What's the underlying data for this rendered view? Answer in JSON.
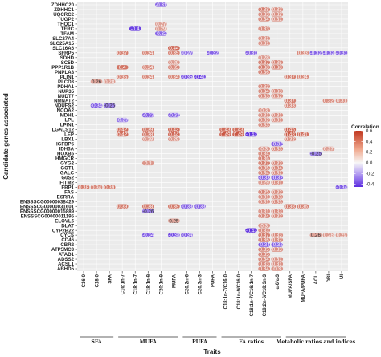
{
  "chart_data": {
    "type": "heatmap",
    "xlabel": "Traits",
    "ylabel": "Candidate genes associated",
    "legend_title": "Correlation",
    "color_range": [
      -0.45,
      0.6
    ],
    "legend_ticks": [
      0.6,
      0.4,
      0.2,
      0.0,
      -0.2,
      -0.4
    ],
    "legend_tick_labels": [
      "0.6",
      "0.4",
      "0.2",
      "0.0",
      "-0.2",
      "-0.4"
    ],
    "colors": {
      "negative": "#5b2be0",
      "zero": "#f7f7f7",
      "positive": "#c0361e"
    },
    "traits": [
      "C16:0",
      "C18:0",
      "SFA",
      "C16:1n-7",
      "C18:1n-7",
      "C18:1n-9",
      "C20:1n-9",
      "MUFA",
      "C20:2n-6",
      "C20:3n-3",
      "PUFA",
      "C18:1n-7/C16:0",
      "C18:1n-9/C16:0",
      "C18:1n-7/C16:1n-7",
      "C18:2n-6/C18:3n-3",
      "ω6/ω3",
      "MUFA/SFA",
      "MUFA/PUFA",
      "ACL",
      "DBI",
      "UI"
    ],
    "trait_groups": [
      {
        "name": "SFA",
        "start": 0,
        "end": 2
      },
      {
        "name": "MUFA",
        "start": 3,
        "end": 7
      },
      {
        "name": "PUFA",
        "start": 8,
        "end": 10
      },
      {
        "name": "FA ratios",
        "start": 11,
        "end": 15
      },
      {
        "name": "Metabolic ratios and indices",
        "start": 16,
        "end": 20
      }
    ],
    "genes": [
      "ZDHHC20",
      "ZDHHC1",
      "UQCRC2",
      "UGP2",
      "THOC1",
      "TFRC",
      "TFAM",
      "SLC27A4",
      "SLC25A15",
      "SLC16A6",
      "SFRP5",
      "SDHD",
      "SC5D",
      "PPP1R1B",
      "PNPLA8",
      "PLIN1",
      "PLCD3",
      "PDHA1",
      "NUP35",
      "NUDT7",
      "NMNAT2",
      "NDUFS2",
      "NCOA2",
      "MDH1",
      "LPL",
      "LPIN1",
      "LGALS12",
      "LEP",
      "LBX1",
      "IGFBP5",
      "IDH3A",
      "HOXB6",
      "HMGCR",
      "GYG2",
      "GOT1",
      "GALC",
      "G0S2",
      "FITM2",
      "FBP1",
      "FAS",
      "ESRRA",
      "ENSSSCG00000038429",
      "ENSSSCG00000031601",
      "ENSSSCG00000015889",
      "ENSSSCG00000011195",
      "ELOVL6",
      "DLAT",
      "CYP2B22",
      "CYCS",
      "CD46",
      "CBR2",
      "ATP5MC3",
      "ATAD1",
      "ADSS2",
      "ACSL1",
      "ABHD5"
    ],
    "cells": [
      [
        "ZDHHC20",
        "C20:1n-9",
        -0.31
      ],
      [
        "ZDHHC1",
        "C18:2n-6/C18:3n-3",
        0.38
      ],
      [
        "ZDHHC1",
        "ω6/ω3",
        0.33
      ],
      [
        "UQCRC2",
        "C18:2n-6/C18:3n-3",
        0.33
      ],
      [
        "UQCRC2",
        "ω6/ω3",
        0.32
      ],
      [
        "UGP2",
        "C18:2n-6/C18:3n-3",
        0.34
      ],
      [
        "UGP2",
        "ω6/ω3",
        0.31
      ],
      [
        "THOC1",
        "C20:1n-9",
        0.27
      ],
      [
        "TFRC",
        "C18:1n-7",
        -0.4
      ],
      [
        "TFRC",
        "C20:1n-9",
        0.29
      ],
      [
        "TFRC",
        "C18:2n-6/C18:3n-3",
        0.33
      ],
      [
        "TFAM",
        "C20:1n-9",
        -0.32
      ],
      [
        "SLC27A4",
        "C18:2n-6/C18:3n-3",
        0.31
      ],
      [
        "SLC25A15",
        "C18:2n-6/C18:3n-3",
        0.31
      ],
      [
        "SLC16A6",
        "MUFA",
        0.44
      ],
      [
        "SFRP5",
        "C16:1n-7",
        0.37
      ],
      [
        "SFRP5",
        "C18:1n-9",
        0.34
      ],
      [
        "SFRP5",
        "MUFA",
        0.35
      ],
      [
        "SFRP5",
        "C20:2n-6",
        -0.27
      ],
      [
        "SFRP5",
        "PUFA",
        -0.32
      ],
      [
        "SFRP5",
        "C18:1n-7/C16:1n-7",
        -0.31
      ],
      [
        "SFRP5",
        "MUFA/PUFA",
        0.33
      ],
      [
        "SFRP5",
        "ACL",
        -0.32
      ],
      [
        "SFRP5",
        "DBI",
        -0.32
      ],
      [
        "SFRP5",
        "UI",
        -0.31
      ],
      [
        "SDHD",
        "C18:2n-6/C18:3n-3",
        0.28
      ],
      [
        "SC5D",
        "MUFA",
        0.29
      ],
      [
        "SC5D",
        "C18:2n-6/C18:3n-3",
        0.37
      ],
      [
        "SC5D",
        "ω6/ω3",
        0.35
      ],
      [
        "PPP1R1B",
        "C16:1n-7",
        0.4
      ],
      [
        "PPP1R1B",
        "C18:1n-9",
        0.34
      ],
      [
        "PPP1R1B",
        "MUFA",
        0.35
      ],
      [
        "PPP1R1B",
        "C18:2n-6/C18:3n-3",
        0.38
      ],
      [
        "PPP1R1B",
        "ω6/ω3",
        0.38
      ],
      [
        "PNPLA8",
        "C18:2n-6/C18:3n-3",
        0.36
      ],
      [
        "PLIN1",
        "C16:1n-7",
        0.35
      ],
      [
        "PLIN1",
        "C18:1n-9",
        0.34
      ],
      [
        "PLIN1",
        "MUFA",
        0.34
      ],
      [
        "PLIN1",
        "C20:2n-6",
        -0.35
      ],
      [
        "PLIN1",
        "C20:3n-3",
        -0.41
      ],
      [
        "PLIN1",
        "MUFA/SFA",
        0.37
      ],
      [
        "PLIN1",
        "MUFA/PUFA",
        0.34
      ],
      [
        "PLCD3",
        "C18:0",
        0.26
      ],
      [
        "PLCD3",
        "SFA",
        0.28
      ],
      [
        "PDHA1",
        "C18:2n-6/C18:3n-3",
        0.33
      ],
      [
        "NUP35",
        "C18:2n-6/C18:3n-3",
        0.34
      ],
      [
        "NUP35",
        "ω6/ω3",
        0.33
      ],
      [
        "NUDT7",
        "C18:2n-6/C18:3n-3",
        0.33
      ],
      [
        "NUDT7",
        "ω6/ω3",
        0.32
      ],
      [
        "NMNAT2",
        "MUFA/SFA",
        0.37
      ],
      [
        "NMNAT2",
        "DBI",
        0.32
      ],
      [
        "NMNAT2",
        "UI",
        0.31
      ],
      [
        "NDUFS2",
        "C18:0",
        -0.34
      ],
      [
        "NDUFS2",
        "SFA",
        -0.26
      ],
      [
        "NDUFS2",
        "MUFA/SFA",
        0.33
      ],
      [
        "NCOA2",
        "C18:2n-6/C18:3n-3",
        0.3
      ],
      [
        "MDH1",
        "C18:1n-9",
        -0.33
      ],
      [
        "MDH1",
        "MUFA",
        -0.32
      ],
      [
        "MDH1",
        "C18:2n-6/C18:3n-3",
        0.31
      ],
      [
        "MDH1",
        "ω6/ω3",
        0.31
      ],
      [
        "LPL",
        "C16:1n-7",
        -0.27
      ],
      [
        "LPL",
        "C18:2n-6/C18:3n-3",
        0.32
      ],
      [
        "LPL",
        "ω6/ω3",
        0.31
      ],
      [
        "LPIN1",
        "C18:2n-6/C18:3n-3",
        0.33
      ],
      [
        "LGALS12",
        "C16:1n-7",
        0.42
      ],
      [
        "LGALS12",
        "C18:1n-9",
        0.39
      ],
      [
        "LGALS12",
        "MUFA",
        0.43
      ],
      [
        "LGALS12",
        "C18:1n-7/C16:0",
        0.43
      ],
      [
        "LGALS12",
        "C18:1n-9/C16:0",
        0.43
      ],
      [
        "LGALS12",
        "MUFA/SFA",
        0.45
      ],
      [
        "LEP",
        "C16:1n-7",
        0.42
      ],
      [
        "LEP",
        "C18:1n-9",
        0.38
      ],
      [
        "LEP",
        "MUFA",
        0.44
      ],
      [
        "LEP",
        "C18:1n-7/C16:0",
        0.49
      ],
      [
        "LEP",
        "C18:1n-9/C16:0",
        0.49
      ],
      [
        "LEP",
        "C18:1n-7/C16:1n-7",
        -0.43
      ],
      [
        "LEP",
        "MUFA/SFA",
        0.48
      ],
      [
        "LEP",
        "MUFA/PUFA",
        0.41
      ],
      [
        "LBX1",
        "C18:1n-9",
        0.28
      ],
      [
        "LBX1",
        "MUFA",
        0.29
      ],
      [
        "LBX1",
        "MUFA/SFA",
        0.32
      ],
      [
        "IGFBP5",
        "ω6/ω3",
        -0.32
      ],
      [
        "IDH3A",
        "C18:2n-6/C18:3n-3",
        0.3
      ],
      [
        "IDH3A",
        "ω6/ω3",
        0.33
      ],
      [
        "IDH3A",
        "DBI",
        0.27
      ],
      [
        "HOXB6",
        "C18:2n-6/C18:3n-3",
        0.34
      ],
      [
        "HOXB6",
        "ACL",
        -0.25
      ],
      [
        "HMGCR",
        "C18:2n-6/C18:3n-3",
        0.36
      ],
      [
        "GYG2",
        "C18:1n-9",
        0.3
      ],
      [
        "GYG2",
        "C18:2n-6/C18:3n-3",
        0.37
      ],
      [
        "GYG2",
        "ω6/ω3",
        0.33
      ],
      [
        "GOT1",
        "C18:2n-6/C18:3n-3",
        0.35
      ],
      [
        "GOT1",
        "ω6/ω3",
        0.34
      ],
      [
        "GALC",
        "C18:2n-6/C18:3n-3",
        0.34
      ],
      [
        "GALC",
        "ω6/ω3",
        0.32
      ],
      [
        "G0S2",
        "C18:2n-6/C18:3n-3",
        -0.33
      ],
      [
        "G0S2",
        "ω6/ω3",
        -0.32
      ],
      [
        "FITM2",
        "C18:2n-6/C18:3n-3",
        0.29
      ],
      [
        "FITM2",
        "ω6/ω3",
        0.31
      ],
      [
        "FBP1",
        "C16:0",
        0.38
      ],
      [
        "FBP1",
        "C18:0",
        0.34
      ],
      [
        "FBP1",
        "SFA",
        0.39
      ],
      [
        "FBP1",
        "UI",
        -0.34
      ],
      [
        "FAS",
        "C18:2n-6/C18:3n-3",
        0.35
      ],
      [
        "FAS",
        "ω6/ω3",
        0.32
      ],
      [
        "ESRRA",
        "C18:2n-6/C18:3n-3",
        0.31
      ],
      [
        "ESRRA",
        "ω6/ω3",
        0.33
      ],
      [
        "ENSSSCG00000038429",
        "C18:2n-6/C18:3n-3",
        0.31
      ],
      [
        "ENSSSCG00000038429",
        "ω6/ω3",
        0.33
      ],
      [
        "ENSSSCG00000031601",
        "C16:1n-7",
        0.39
      ],
      [
        "ENSSSCG00000031601",
        "C18:1n-9",
        0.38
      ],
      [
        "ENSSSCG00000031601",
        "MUFA",
        0.39
      ],
      [
        "ENSSSCG00000031601",
        "C20:2n-6",
        -0.33
      ],
      [
        "ENSSSCG00000031601",
        "C20:3n-3",
        -0.33
      ],
      [
        "ENSSSCG00000031601",
        "MUFA/SFA",
        0.38
      ],
      [
        "ENSSSCG00000031601",
        "MUFA/PUFA",
        0.36
      ],
      [
        "ENSSSCG00000015889",
        "C18:1n-9",
        -0.26
      ],
      [
        "ENSSSCG00000015889",
        "C18:2n-6/C18:3n-3",
        0.31
      ],
      [
        "ENSSSCG00000015889",
        "ω6/ω3",
        0.33
      ],
      [
        "ENSSSCG00000011195",
        "C18:2n-6/C18:3n-3",
        0.34
      ],
      [
        "ENSSSCG00000011195",
        "ω6/ω3",
        0.32
      ],
      [
        "ELOVL6",
        "MUFA",
        0.25
      ],
      [
        "DLAT",
        "C18:2n-6/C18:3n-3",
        0.3
      ],
      [
        "CYP2B22",
        "C18:1n-7/C16:1n-7",
        -0.43
      ],
      [
        "CYP2B22",
        "C18:2n-6/C18:3n-3",
        0.33
      ],
      [
        "CYCS",
        "C18:1n-9",
        -0.34
      ],
      [
        "CYCS",
        "MUFA",
        -0.38
      ],
      [
        "CYCS",
        "C20:2n-6",
        -0.34
      ],
      [
        "CYCS",
        "C18:2n-6/C18:3n-3",
        0.37
      ],
      [
        "CYCS",
        "ω6/ω3",
        0.33
      ],
      [
        "CYCS",
        "ACL",
        0.26
      ],
      [
        "CYCS",
        "DBI",
        0.28
      ],
      [
        "CYCS",
        "UI",
        0.29
      ],
      [
        "CD46",
        "C18:2n-6/C18:3n-3",
        0.36
      ],
      [
        "CD46",
        "ω6/ω3",
        0.32
      ],
      [
        "CBR2",
        "C18:2n-6/C18:3n-3",
        -0.34
      ],
      [
        "CBR2",
        "ω6/ω3",
        -0.32
      ],
      [
        "ATP5MC3",
        "C18:2n-6/C18:3n-3",
        0.35
      ],
      [
        "ATP5MC3",
        "ω6/ω3",
        0.33
      ],
      [
        "ATAD1",
        "C18:2n-6/C18:3n-3",
        0.35
      ],
      [
        "ADSS2",
        "C18:2n-6/C18:3n-3",
        0.34
      ],
      [
        "ADSS2",
        "ω6/ω3",
        0.31
      ],
      [
        "ACSL1",
        "C18:2n-6/C18:3n-3",
        0.33
      ],
      [
        "ACSL1",
        "ω6/ω3",
        0.31
      ],
      [
        "ABHD5",
        "C18:2n-6/C18:3n-3",
        0.34
      ],
      [
        "ABHD5",
        "ω6/ω3",
        0.3
      ]
    ]
  }
}
